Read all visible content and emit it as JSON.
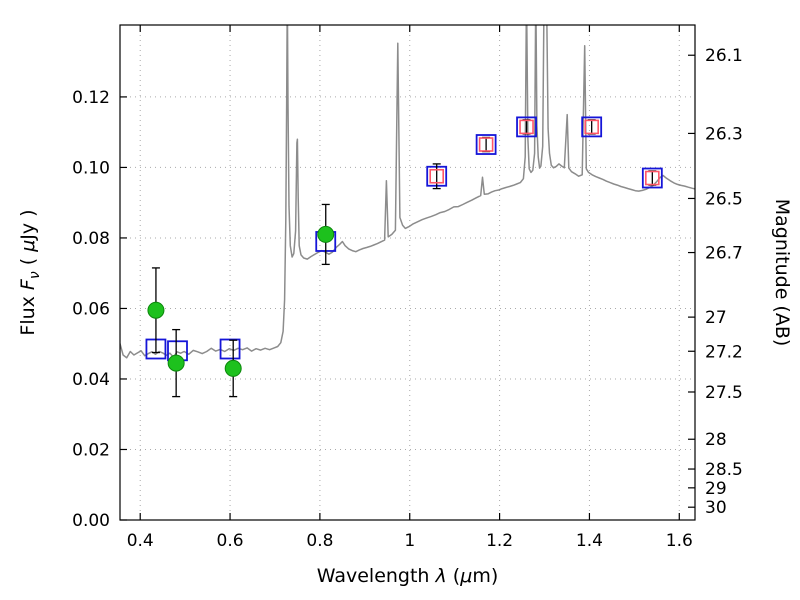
{
  "figure": {
    "background": "#ffffff",
    "frame_color": "#000000",
    "grid_color": "#aaaaaa",
    "grid_style": "dotted"
  },
  "chart_data": {
    "type": "line",
    "title": "",
    "xlabel": "Wavelength λ (μm)",
    "ylabel": "Flux F_ν ( μJy )",
    "y2label": "Magnitude (AB)",
    "xlabel_rich": [
      {
        "text": "Wavelength "
      },
      {
        "text": "λ",
        "italic": true
      },
      {
        "text": " ("
      },
      {
        "text": "μ",
        "italic": true
      },
      {
        "text": "m)"
      }
    ],
    "ylabel_rich": [
      {
        "text": "Flux  "
      },
      {
        "text": "F",
        "italic": true
      },
      {
        "text": "ν",
        "italic": true,
        "sub": true
      },
      {
        "text": "  ( "
      },
      {
        "text": "μ",
        "italic": true
      },
      {
        "text": "Jy )"
      }
    ],
    "y2label_rich": [
      {
        "text": "Magnitude (AB)"
      }
    ],
    "xlim": [
      0.355,
      1.635
    ],
    "ylim": [
      0.0,
      0.1404
    ],
    "grid": true,
    "xticks": [
      0.4,
      0.6,
      0.8,
      1.0,
      1.2,
      1.4,
      1.6
    ],
    "xtick_labels": [
      "0.4",
      "0.6",
      "0.8",
      "1",
      "1.2",
      "1.4",
      "1.6"
    ],
    "yticks": [
      0.0,
      0.02,
      0.04,
      0.06,
      0.08,
      0.1,
      0.12
    ],
    "ytick_labels": [
      "0.00",
      "0.02",
      "0.04",
      "0.06",
      "0.08",
      "0.10",
      "0.12"
    ],
    "y2_ticks": [
      26.1,
      26.3,
      26.5,
      26.7,
      27.0,
      27.2,
      27.5,
      28.0,
      28.5,
      29.0,
      30.0
    ],
    "y2_tick_labels": [
      "26.1",
      "26.3",
      "26.5",
      "26.7",
      "27",
      "27.2",
      "27.5",
      "28",
      "28.5",
      "29",
      "30"
    ],
    "ab_zeropoint_ujy": 23.9,
    "series": [
      {
        "name": "model-spectrum",
        "type": "line",
        "color": "#8c8c8c",
        "linewidth": 1.5,
        "points": [
          [
            0.355,
            0.05
          ],
          [
            0.362,
            0.0468
          ],
          [
            0.37,
            0.046
          ],
          [
            0.378,
            0.0478
          ],
          [
            0.386,
            0.0468
          ],
          [
            0.394,
            0.0474
          ],
          [
            0.402,
            0.048
          ],
          [
            0.41,
            0.0466
          ],
          [
            0.418,
            0.0472
          ],
          [
            0.426,
            0.0477
          ],
          [
            0.434,
            0.047
          ],
          [
            0.442,
            0.0478
          ],
          [
            0.45,
            0.0474
          ],
          [
            0.458,
            0.0467
          ],
          [
            0.466,
            0.0473
          ],
          [
            0.474,
            0.0462
          ],
          [
            0.482,
            0.0477
          ],
          [
            0.49,
            0.0473
          ],
          [
            0.498,
            0.0478
          ],
          [
            0.508,
            0.047
          ],
          [
            0.518,
            0.0481
          ],
          [
            0.528,
            0.0477
          ],
          [
            0.538,
            0.0472
          ],
          [
            0.548,
            0.0478
          ],
          [
            0.558,
            0.0487
          ],
          [
            0.568,
            0.0479
          ],
          [
            0.578,
            0.0484
          ],
          [
            0.588,
            0.0478
          ],
          [
            0.598,
            0.0486
          ],
          [
            0.608,
            0.0481
          ],
          [
            0.618,
            0.0487
          ],
          [
            0.628,
            0.0483
          ],
          [
            0.638,
            0.0488
          ],
          [
            0.648,
            0.0479
          ],
          [
            0.658,
            0.0486
          ],
          [
            0.668,
            0.0482
          ],
          [
            0.678,
            0.0487
          ],
          [
            0.688,
            0.0483
          ],
          [
            0.698,
            0.0488
          ],
          [
            0.706,
            0.0492
          ],
          [
            0.713,
            0.0503
          ],
          [
            0.718,
            0.0535
          ],
          [
            0.7215,
            0.0625
          ],
          [
            0.724,
            0.085
          ],
          [
            0.726,
            0.12
          ],
          [
            0.7275,
            0.15
          ],
          [
            0.729,
            0.118
          ],
          [
            0.7312,
            0.089
          ],
          [
            0.734,
            0.0778
          ],
          [
            0.738,
            0.0746
          ],
          [
            0.742,
            0.0756
          ],
          [
            0.746,
            0.082
          ],
          [
            0.7487,
            0.107
          ],
          [
            0.75,
            0.108
          ],
          [
            0.7516,
            0.0915
          ],
          [
            0.754,
            0.0778
          ],
          [
            0.758,
            0.0752
          ],
          [
            0.764,
            0.0743
          ],
          [
            0.772,
            0.074
          ],
          [
            0.78,
            0.0747
          ],
          [
            0.788,
            0.0753
          ],
          [
            0.796,
            0.0759
          ],
          [
            0.804,
            0.0764
          ],
          [
            0.812,
            0.076
          ],
          [
            0.82,
            0.0754
          ],
          [
            0.828,
            0.076
          ],
          [
            0.836,
            0.0773
          ],
          [
            0.844,
            0.0782
          ],
          [
            0.85,
            0.079
          ],
          [
            0.856,
            0.0778
          ],
          [
            0.864,
            0.0769
          ],
          [
            0.872,
            0.0764
          ],
          [
            0.88,
            0.0761
          ],
          [
            0.888,
            0.0766
          ],
          [
            0.896,
            0.077
          ],
          [
            0.904,
            0.0773
          ],
          [
            0.912,
            0.0776
          ],
          [
            0.92,
            0.078
          ],
          [
            0.928,
            0.0784
          ],
          [
            0.936,
            0.0789
          ],
          [
            0.944,
            0.0794
          ],
          [
            0.948,
            0.0962
          ],
          [
            0.952,
            0.0803
          ],
          [
            0.96,
            0.081
          ],
          [
            0.968,
            0.0822
          ],
          [
            0.9735,
            0.1352
          ],
          [
            0.978,
            0.0858
          ],
          [
            0.984,
            0.0836
          ],
          [
            0.99,
            0.0827
          ],
          [
            0.998,
            0.0832
          ],
          [
            1.008,
            0.084
          ],
          [
            1.018,
            0.0846
          ],
          [
            1.028,
            0.0852
          ],
          [
            1.038,
            0.0857
          ],
          [
            1.048,
            0.0861
          ],
          [
            1.058,
            0.0866
          ],
          [
            1.068,
            0.0872
          ],
          [
            1.078,
            0.0875
          ],
          [
            1.088,
            0.0881
          ],
          [
            1.098,
            0.0888
          ],
          [
            1.108,
            0.0889
          ],
          [
            1.118,
            0.0895
          ],
          [
            1.128,
            0.0901
          ],
          [
            1.138,
            0.0907
          ],
          [
            1.148,
            0.0914
          ],
          [
            1.158,
            0.092
          ],
          [
            1.162,
            0.0972
          ],
          [
            1.166,
            0.0924
          ],
          [
            1.174,
            0.0925
          ],
          [
            1.182,
            0.093
          ],
          [
            1.19,
            0.0934
          ],
          [
            1.198,
            0.0936
          ],
          [
            1.206,
            0.094
          ],
          [
            1.214,
            0.0943
          ],
          [
            1.222,
            0.0946
          ],
          [
            1.23,
            0.0949
          ],
          [
            1.238,
            0.0953
          ],
          [
            1.246,
            0.0957
          ],
          [
            1.253,
            0.0968
          ],
          [
            1.257,
            0.103
          ],
          [
            1.26,
            0.15
          ],
          [
            1.263,
            0.108
          ],
          [
            1.266,
            0.0996
          ],
          [
            1.27,
            0.0986
          ],
          [
            1.274,
            0.0992
          ],
          [
            1.278,
            0.104
          ],
          [
            1.2805,
            0.15
          ],
          [
            1.283,
            0.112
          ],
          [
            1.286,
            0.103
          ],
          [
            1.289,
            0.0998
          ],
          [
            1.292,
            0.1004
          ],
          [
            1.296,
            0.106
          ],
          [
            1.299,
            0.15
          ],
          [
            1.3045,
            0.15
          ],
          [
            1.308,
            0.111
          ],
          [
            1.311,
            0.104
          ],
          [
            1.315,
            0.1006
          ],
          [
            1.32,
            0.0999
          ],
          [
            1.326,
            0.1003
          ],
          [
            1.332,
            0.101
          ],
          [
            1.338,
            0.1004
          ],
          [
            1.344,
            0.0999
          ],
          [
            1.3505,
            0.115
          ],
          [
            1.354,
            0.0998
          ],
          [
            1.36,
            0.0988
          ],
          [
            1.368,
            0.0982
          ],
          [
            1.376,
            0.0975
          ],
          [
            1.384,
            0.0979
          ],
          [
            1.3895,
            0.1345
          ],
          [
            1.393,
            0.0996
          ],
          [
            1.398,
            0.0986
          ],
          [
            1.406,
            0.0979
          ],
          [
            1.414,
            0.0974
          ],
          [
            1.422,
            0.097
          ],
          [
            1.43,
            0.0966
          ],
          [
            1.438,
            0.0961
          ],
          [
            1.446,
            0.0957
          ],
          [
            1.454,
            0.0953
          ],
          [
            1.462,
            0.095
          ],
          [
            1.47,
            0.0946
          ],
          [
            1.478,
            0.0943
          ],
          [
            1.486,
            0.094
          ],
          [
            1.494,
            0.0937
          ],
          [
            1.502,
            0.0934
          ],
          [
            1.51,
            0.0933
          ],
          [
            1.518,
            0.0935
          ],
          [
            1.526,
            0.0938
          ],
          [
            1.534,
            0.0943
          ],
          [
            1.542,
            0.0949
          ],
          [
            1.55,
            0.096
          ],
          [
            1.558,
            0.0972
          ],
          [
            1.564,
            0.0977
          ],
          [
            1.572,
            0.0969
          ],
          [
            1.58,
            0.0962
          ],
          [
            1.588,
            0.0956
          ],
          [
            1.596,
            0.0952
          ],
          [
            1.604,
            0.0949
          ],
          [
            1.612,
            0.0947
          ],
          [
            1.62,
            0.0944
          ],
          [
            1.628,
            0.0941
          ],
          [
            1.635,
            0.0939
          ]
        ]
      },
      {
        "name": "synthetic-photometry-blue-squares",
        "type": "square",
        "color": "#1515d8",
        "linewidth": 1.8,
        "marker_half": 9.5,
        "error_color": "#000000",
        "points": [
          [
            0.435,
            0.0485,
            0
          ],
          [
            0.483,
            0.048,
            0
          ],
          [
            0.6,
            0.0485,
            0
          ],
          [
            0.813,
            0.079,
            0
          ],
          [
            1.06,
            0.0975,
            0
          ],
          [
            1.17,
            0.1065,
            0
          ],
          [
            1.26,
            0.1115,
            0
          ],
          [
            1.405,
            0.1115,
            0
          ],
          [
            1.54,
            0.097,
            0
          ]
        ]
      },
      {
        "name": "model-photometry-red-squares",
        "type": "square",
        "color": "#ff5566",
        "linewidth": 1.6,
        "marker_half": 6.5,
        "error_color": "#000000",
        "points": [
          [
            1.06,
            0.0975,
            0.0035
          ],
          [
            1.17,
            0.1065,
            0.002
          ],
          [
            1.26,
            0.1115,
            0.002
          ],
          [
            1.405,
            0.1115,
            0.002
          ],
          [
            1.54,
            0.097,
            0.002
          ]
        ]
      },
      {
        "name": "observed-photometry-circles",
        "type": "circle",
        "color": "#1dc11d",
        "edge_color": "#0c860c",
        "linewidth": 1,
        "marker_radius": 8,
        "error_color": "#000000",
        "points": [
          [
            0.435,
            0.0595,
            0.012
          ],
          [
            0.48,
            0.0445,
            0.0095
          ],
          [
            0.607,
            0.043,
            0.008
          ],
          [
            0.813,
            0.081,
            0.0085
          ]
        ]
      }
    ]
  }
}
